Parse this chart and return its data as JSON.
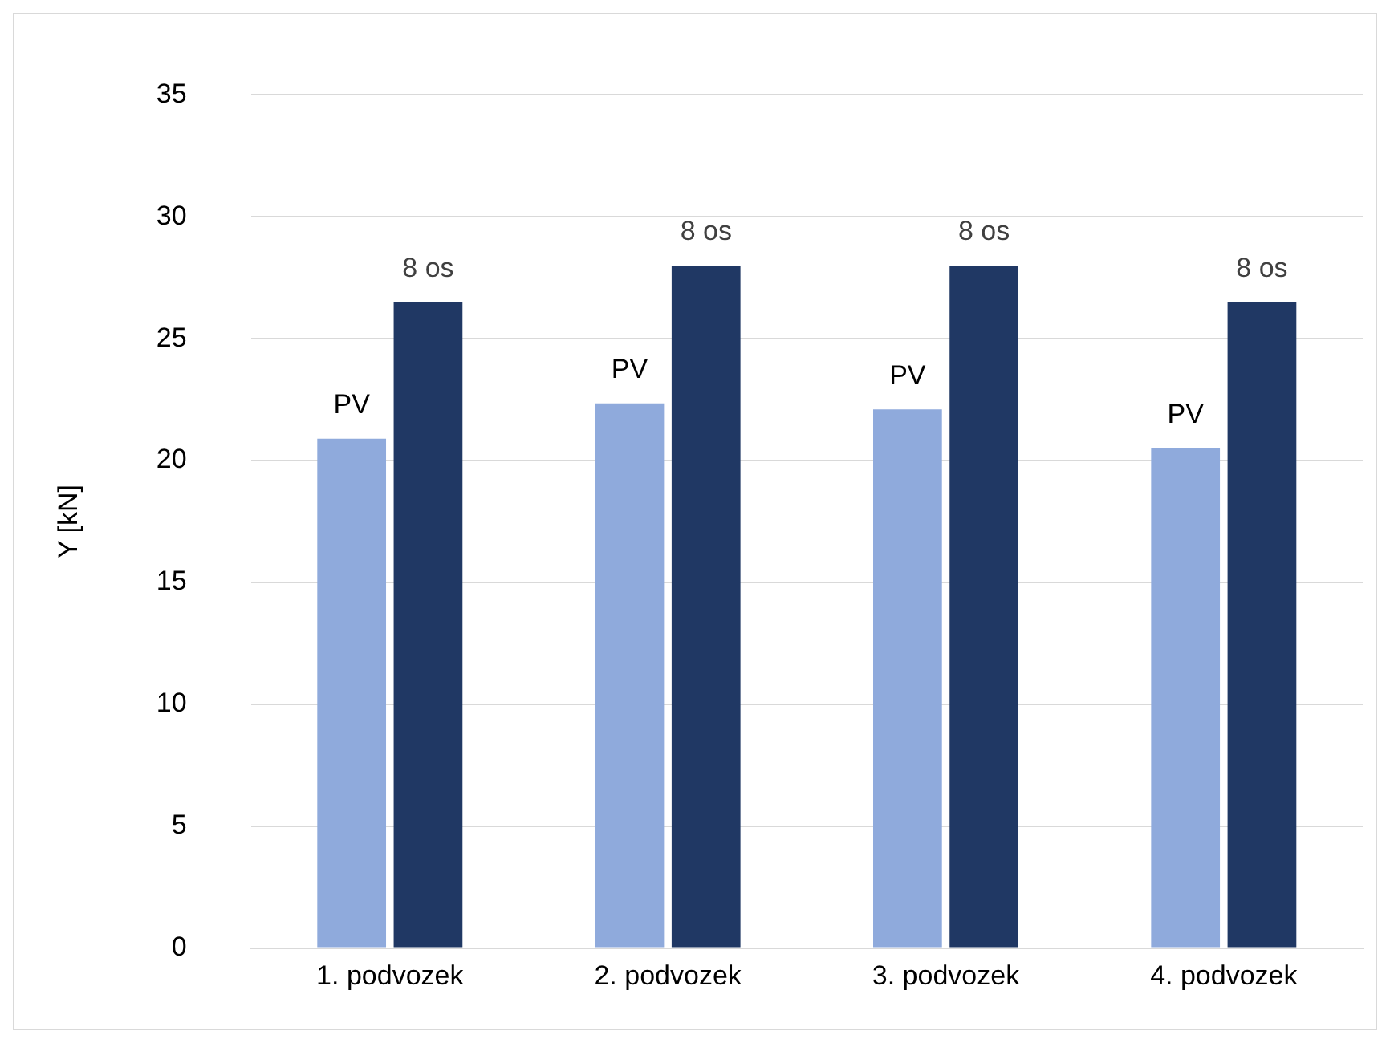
{
  "chart_data": {
    "type": "bar",
    "ylabel": "Y [kN]",
    "categories": [
      "1. podvozek",
      "2. podvozek",
      "3. podvozek",
      "4. podvozek"
    ],
    "series": [
      {
        "name": "PV",
        "color": "#8faadc",
        "values": [
          20.9,
          22.35,
          22.1,
          20.5
        ]
      },
      {
        "name": "8 os",
        "color": "#203864",
        "values": [
          26.5,
          28.0,
          28.0,
          26.5
        ]
      }
    ],
    "ylim": [
      0,
      35
    ],
    "yticks": [
      0,
      5,
      10,
      15,
      20,
      25,
      30,
      35
    ],
    "grid": "y",
    "legend": false
  }
}
